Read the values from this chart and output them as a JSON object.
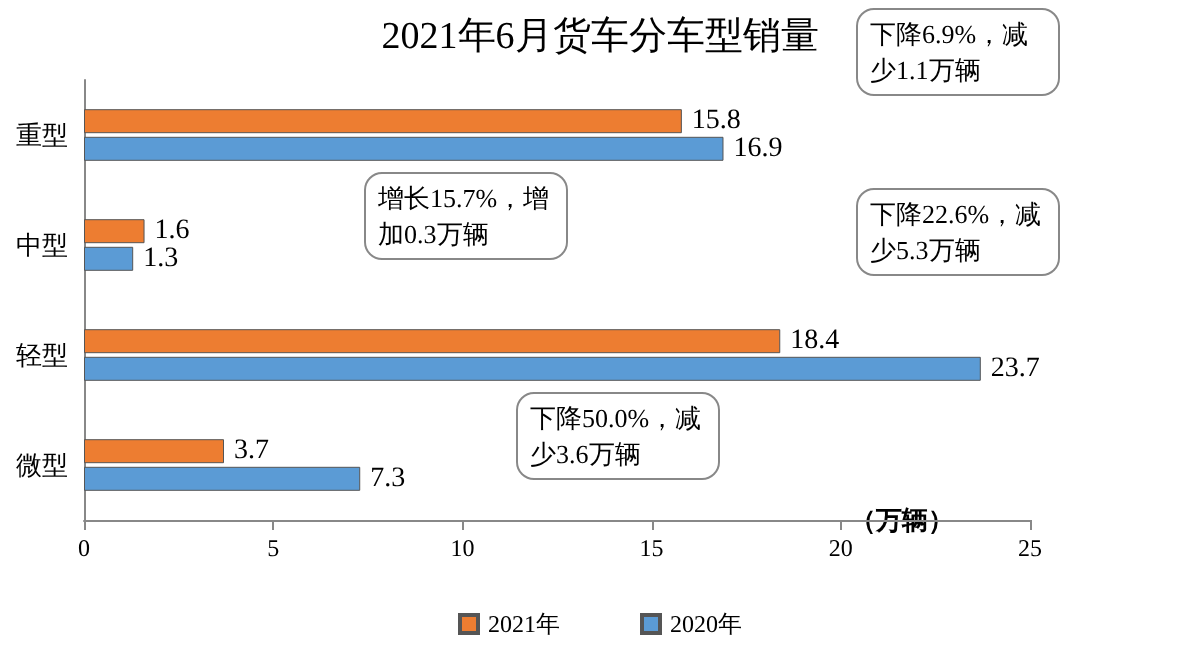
{
  "chart_data": {
    "type": "bar",
    "orientation": "horizontal",
    "title": "2021年6月货车分车型销量",
    "xlabel": "（万辆）",
    "categories": [
      "重型",
      "中型",
      "轻型",
      "微型"
    ],
    "series": [
      {
        "name": "2021年",
        "color": "#ed7d31",
        "values": [
          15.8,
          1.6,
          18.4,
          3.7
        ]
      },
      {
        "name": "2020年",
        "color": "#5b9bd5",
        "values": [
          16.9,
          1.3,
          23.7,
          7.3
        ]
      }
    ],
    "xlim": [
      0,
      25
    ],
    "xticks": [
      0,
      5,
      10,
      15,
      20,
      25
    ],
    "data_labels": true,
    "legend": "bottom",
    "grid": false,
    "annotations": [
      "下降6.9%，减少1.1万辆",
      "增长15.7%，增加0.3万辆",
      "下降22.6%，减少5.3万辆",
      "下降50.0%，减少3.6万辆"
    ]
  }
}
